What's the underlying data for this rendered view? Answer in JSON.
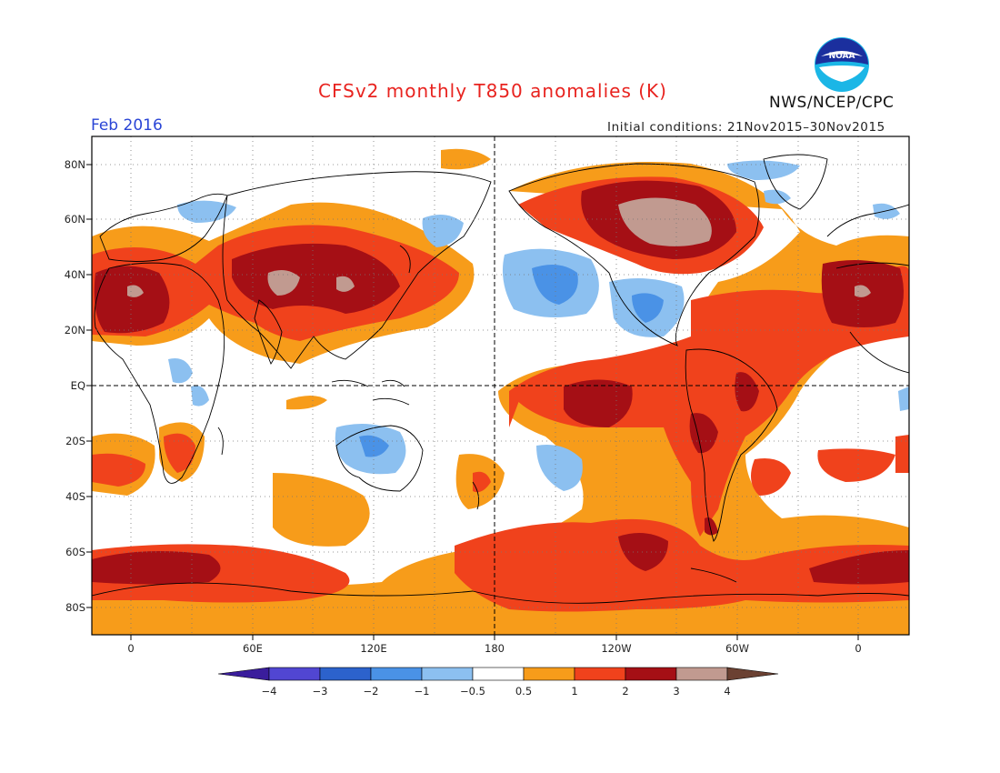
{
  "title": "CFSv2 monthly T850 anomalies (K)",
  "valid_month": "Feb 2016",
  "initial_conditions": "Initial conditions: 21Nov2015–30Nov2015",
  "agency": "NWS/NCEP/CPC",
  "logo_text": "NOAA",
  "y_axis_ticks": [
    "80N",
    "60N",
    "40N",
    "20N",
    "EQ",
    "20S",
    "40S",
    "60S",
    "80S"
  ],
  "x_axis_ticks": [
    "0",
    "60E",
    "120E",
    "180",
    "120W",
    "60W",
    "0"
  ],
  "colorbar": {
    "levels": [
      "−4",
      "−3",
      "−2",
      "−1",
      "−0.5",
      "0.5",
      "1",
      "2",
      "3",
      "4"
    ],
    "colors": [
      "#3a1d9c",
      "#5146d2",
      "#2c62cc",
      "#4a92e6",
      "#8cc0f0",
      "#ffffff",
      "#f79c1a",
      "#f0421c",
      "#a50f15",
      "#c19a90",
      "#6b4132"
    ]
  },
  "anomaly_colors": {
    "warm_1": "#f79c1a",
    "warm_2": "#f0421c",
    "warm_3": "#a50f15",
    "warm_4": "#c19a90",
    "cool_1": "#8cc0f0",
    "cool_2": "#4a92e6"
  }
}
